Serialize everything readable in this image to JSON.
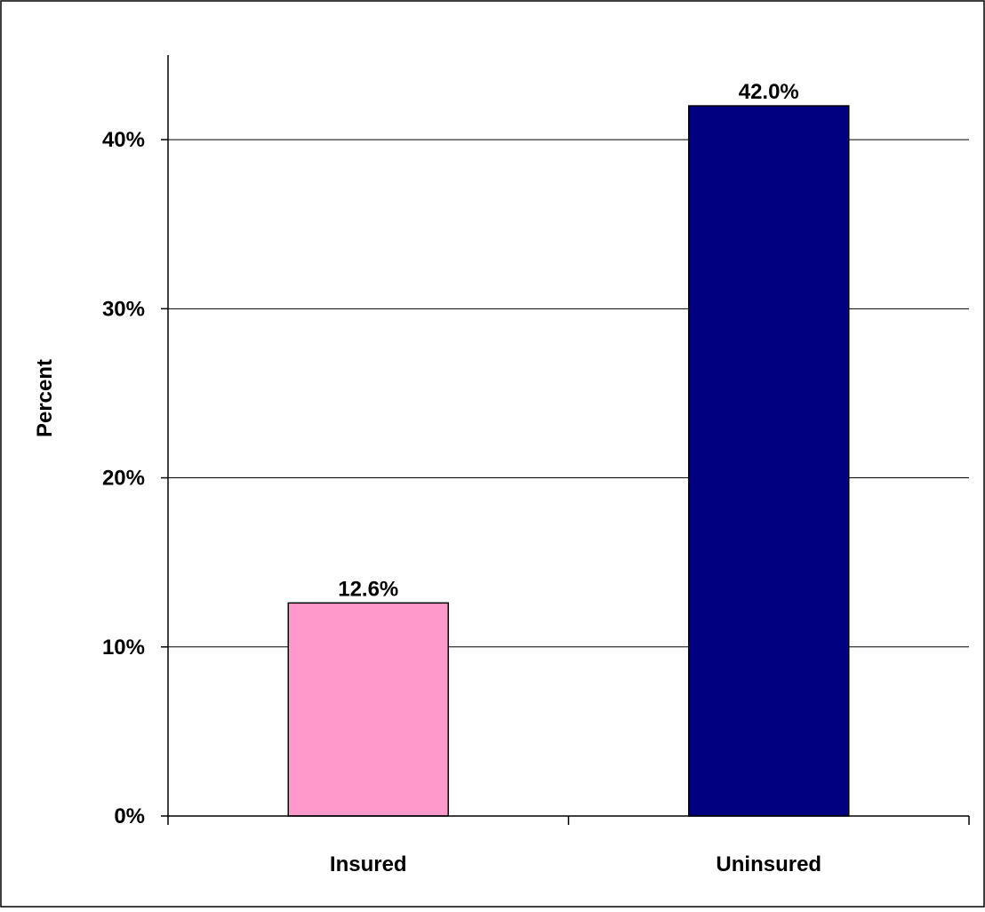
{
  "chart_data": {
    "type": "bar",
    "title": "",
    "xlabel": "",
    "ylabel": "Percent",
    "categories": [
      "Insured",
      "Uninsured"
    ],
    "values": [
      12.6,
      42.0
    ],
    "data_labels": [
      "12.6%",
      "42.0%"
    ],
    "bar_colors": [
      "#FF99CC",
      "#000080"
    ],
    "ylim": [
      0,
      45
    ],
    "yticks": [
      0,
      10,
      20,
      30,
      40
    ],
    "ytick_labels": [
      "0%",
      "10%",
      "20%",
      "30%",
      "40%"
    ],
    "grid": true,
    "legend": "none"
  }
}
